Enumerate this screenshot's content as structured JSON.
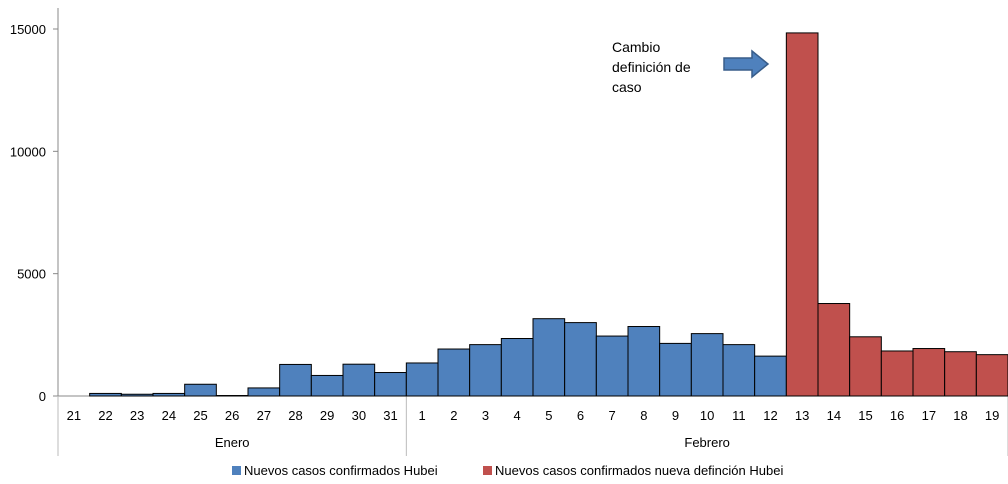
{
  "chart_data": {
    "type": "bar",
    "categories": [
      "21",
      "22",
      "23",
      "24",
      "25",
      "26",
      "27",
      "28",
      "29",
      "30",
      "31",
      "1",
      "2",
      "3",
      "4",
      "5",
      "6",
      "7",
      "8",
      "9",
      "10",
      "11",
      "12",
      "13",
      "14",
      "15",
      "16",
      "17",
      "18",
      "19"
    ],
    "groups": [
      {
        "label": "Enero",
        "start": 0,
        "end": 10
      },
      {
        "label": "Febrero",
        "start": 11,
        "end": 29
      }
    ],
    "series": [
      {
        "name": "Nuevos casos confirmados Hubei",
        "color": "#4f81bd",
        "values": [
          0,
          105,
          72,
          105,
          480,
          20,
          330,
          1290,
          840,
          1300,
          960,
          1350,
          1920,
          2100,
          2350,
          3160,
          3000,
          2450,
          2840,
          2150,
          2550,
          2100,
          1630,
          null,
          null,
          null,
          null,
          null,
          null,
          null
        ]
      },
      {
        "name": "Nuevos casos confirmados nueva definción Hubei",
        "color": "#c0504d",
        "values": [
          null,
          null,
          null,
          null,
          null,
          null,
          null,
          null,
          null,
          null,
          null,
          null,
          null,
          null,
          null,
          null,
          null,
          null,
          null,
          null,
          null,
          null,
          null,
          14840,
          3780,
          2420,
          1840,
          1940,
          1810,
          1690
        ]
      }
    ],
    "yticks": [
      0,
      5000,
      10000,
      15000
    ],
    "ylim": [
      0,
      16000
    ],
    "grid": false,
    "legend_position": "bottom",
    "annotation": {
      "lines": [
        "Cambio",
        "definición de",
        "caso"
      ],
      "arrow": "right-arrow-icon"
    }
  }
}
